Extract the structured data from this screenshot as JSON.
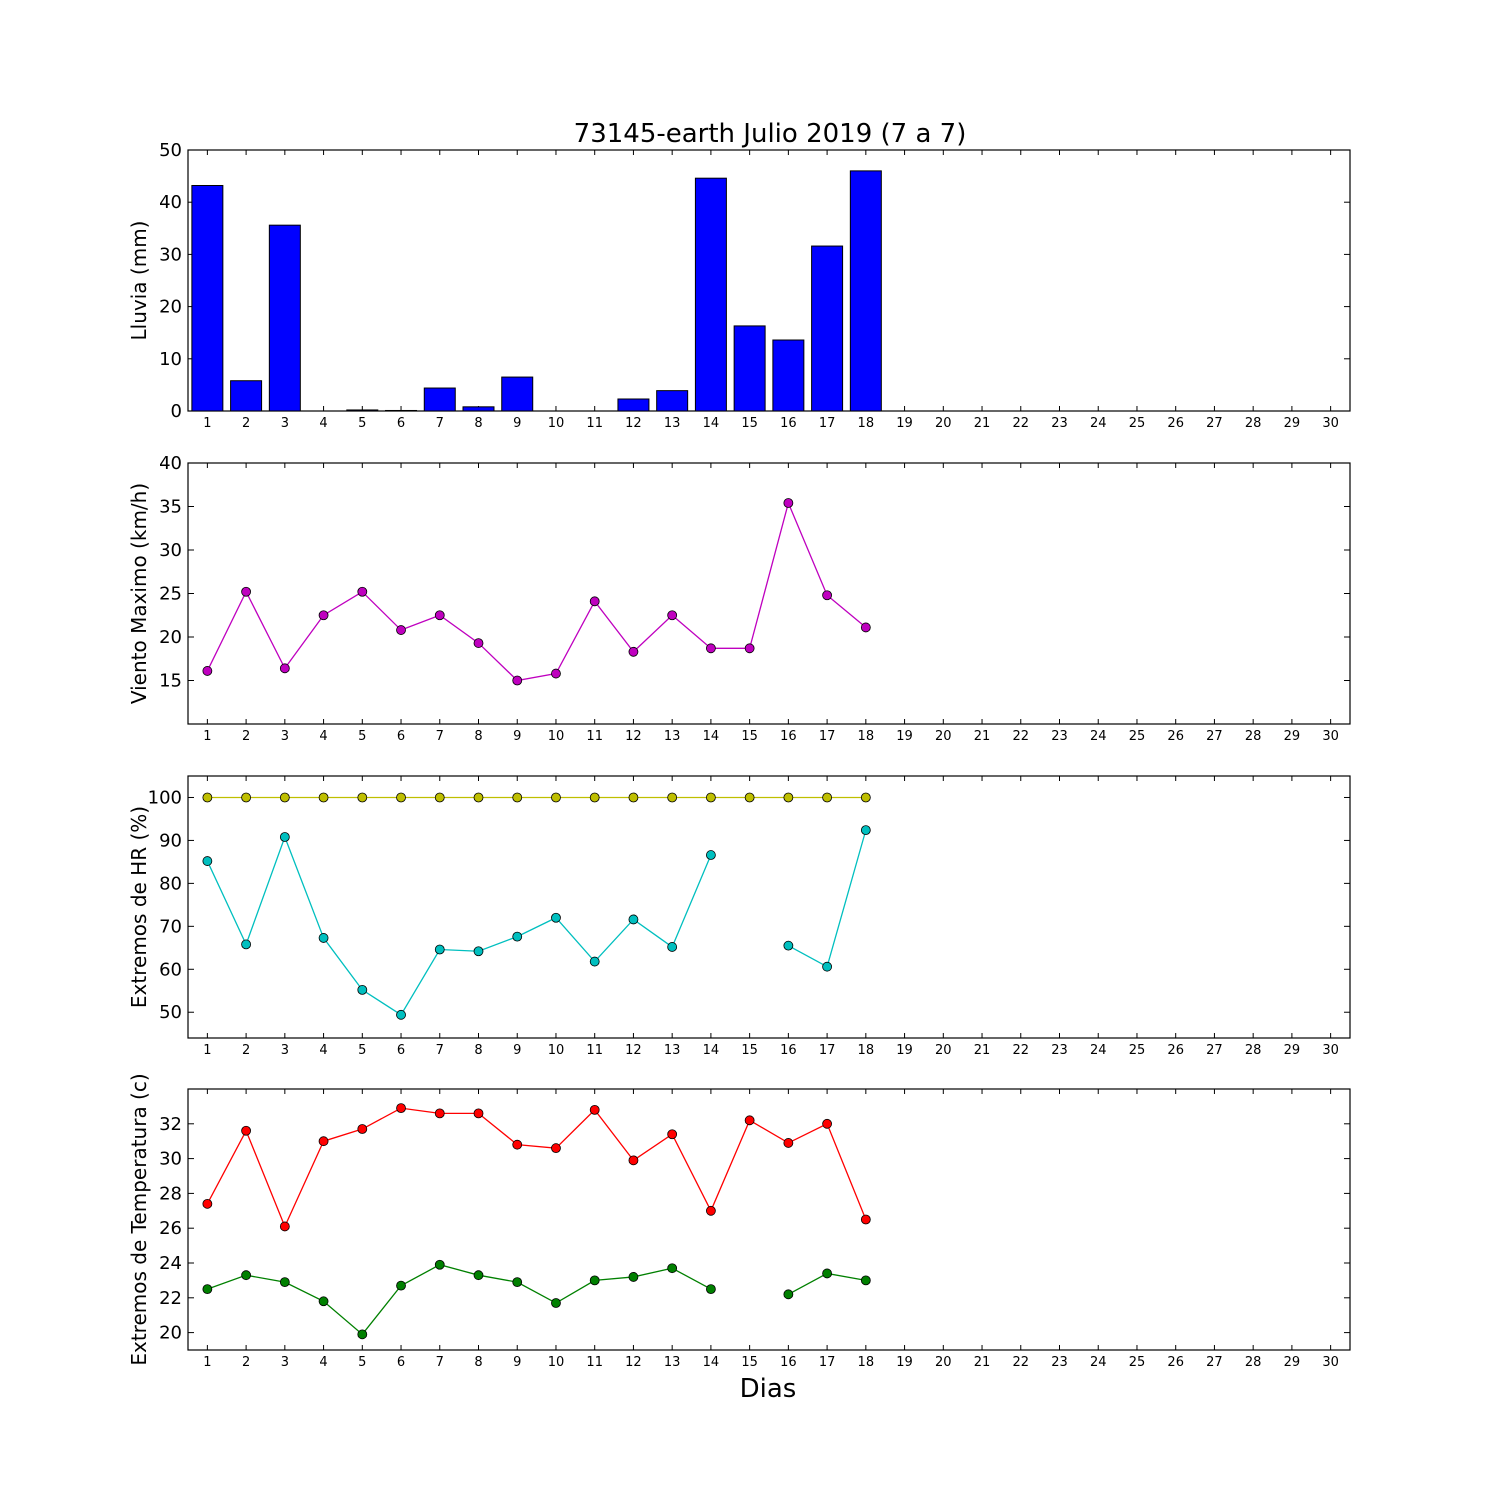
{
  "figure": {
    "title": "73145-earth Julio 2019  (7 a 7)",
    "xlabel": "Dias"
  },
  "chart_data": [
    {
      "type": "bar",
      "ylabel": "Lluvia (mm)",
      "ylim": [
        0,
        50
      ],
      "yticks": [
        0,
        10,
        20,
        30,
        40,
        50
      ],
      "xlim": [
        0.5,
        30.5
      ],
      "xticks": [
        1,
        2,
        3,
        4,
        5,
        6,
        7,
        8,
        9,
        10,
        11,
        12,
        13,
        14,
        15,
        16,
        17,
        18,
        19,
        20,
        21,
        22,
        23,
        24,
        25,
        26,
        27,
        28,
        29,
        30
      ],
      "grid": false,
      "series": [
        {
          "color": "#0000ff",
          "x": [
            1,
            2,
            3,
            4,
            5,
            6,
            7,
            8,
            9,
            10,
            11,
            12,
            13,
            14,
            15,
            16,
            17,
            18
          ],
          "values": [
            43.2,
            5.8,
            35.6,
            0,
            0.2,
            0.1,
            4.4,
            0.8,
            6.5,
            0,
            0,
            2.3,
            3.9,
            44.6,
            16.3,
            13.6,
            31.6,
            46.0
          ]
        }
      ]
    },
    {
      "type": "line",
      "ylabel": "Viento Maximo (km/h)",
      "ylim": [
        10,
        40
      ],
      "yticks": [
        15,
        20,
        25,
        30,
        35,
        40
      ],
      "xlim": [
        0.5,
        30.5
      ],
      "xticks": [
        1,
        2,
        3,
        4,
        5,
        6,
        7,
        8,
        9,
        10,
        11,
        12,
        13,
        14,
        15,
        16,
        17,
        18,
        19,
        20,
        21,
        22,
        23,
        24,
        25,
        26,
        27,
        28,
        29,
        30
      ],
      "grid": false,
      "series": [
        {
          "color": "#bf00bf",
          "x": [
            1,
            2,
            3,
            4,
            5,
            6,
            7,
            8,
            9,
            10,
            11,
            12,
            13,
            14,
            15,
            16,
            17,
            18
          ],
          "values": [
            16.1,
            25.2,
            16.4,
            22.5,
            25.2,
            20.8,
            22.5,
            19.3,
            15.0,
            15.8,
            24.1,
            18.3,
            22.5,
            18.7,
            18.7,
            35.4,
            24.8,
            21.1
          ]
        }
      ]
    },
    {
      "type": "line",
      "ylabel": "Extremos de HR (%)",
      "ylim": [
        44,
        105
      ],
      "yticks": [
        50,
        60,
        70,
        80,
        90,
        100
      ],
      "xlim": [
        0.5,
        30.5
      ],
      "xticks": [
        1,
        2,
        3,
        4,
        5,
        6,
        7,
        8,
        9,
        10,
        11,
        12,
        13,
        14,
        15,
        16,
        17,
        18,
        19,
        20,
        21,
        22,
        23,
        24,
        25,
        26,
        27,
        28,
        29,
        30
      ],
      "grid": false,
      "series": [
        {
          "color": "#bfbf00",
          "x": [
            1,
            2,
            3,
            4,
            5,
            6,
            7,
            8,
            9,
            10,
            11,
            12,
            13,
            14,
            15,
            16,
            17,
            18
          ],
          "values": [
            100,
            100,
            100,
            100,
            100,
            100,
            100,
            100,
            100,
            100,
            100,
            100,
            100,
            100,
            100,
            100,
            100,
            100
          ]
        },
        {
          "color": "#00bfbf",
          "x": [
            1,
            2,
            3,
            4,
            5,
            6,
            7,
            8,
            9,
            10,
            11,
            12,
            13,
            14,
            15,
            16,
            17,
            18
          ],
          "values": [
            85.2,
            65.8,
            90.8,
            67.3,
            55.2,
            49.4,
            64.6,
            64.2,
            67.6,
            72.0,
            61.8,
            71.6,
            65.2,
            86.6,
            null,
            65.5,
            60.6,
            92.4
          ]
        }
      ]
    },
    {
      "type": "line",
      "ylabel": "Extremos de Temperatura (c)",
      "ylim": [
        19,
        34
      ],
      "yticks": [
        20,
        22,
        24,
        26,
        28,
        30,
        32
      ],
      "xlim": [
        0.5,
        30.5
      ],
      "xticks": [
        1,
        2,
        3,
        4,
        5,
        6,
        7,
        8,
        9,
        10,
        11,
        12,
        13,
        14,
        15,
        16,
        17,
        18,
        19,
        20,
        21,
        22,
        23,
        24,
        25,
        26,
        27,
        28,
        29,
        30
      ],
      "grid": false,
      "series": [
        {
          "color": "#ff0000",
          "x": [
            1,
            2,
            3,
            4,
            5,
            6,
            7,
            8,
            9,
            10,
            11,
            12,
            13,
            14,
            15,
            16,
            17,
            18
          ],
          "values": [
            27.4,
            31.6,
            26.1,
            31.0,
            31.7,
            32.9,
            32.6,
            32.6,
            30.8,
            30.6,
            32.8,
            29.9,
            31.4,
            27.0,
            32.2,
            30.9,
            32.0,
            26.5
          ]
        },
        {
          "color": "#008000",
          "x": [
            1,
            2,
            3,
            4,
            5,
            6,
            7,
            8,
            9,
            10,
            11,
            12,
            13,
            14,
            15,
            16,
            17,
            18
          ],
          "values": [
            22.5,
            23.3,
            22.9,
            21.8,
            19.9,
            22.7,
            23.9,
            23.3,
            22.9,
            21.7,
            23.0,
            23.2,
            23.7,
            22.5,
            null,
            22.2,
            23.4,
            23.0
          ]
        }
      ]
    }
  ]
}
